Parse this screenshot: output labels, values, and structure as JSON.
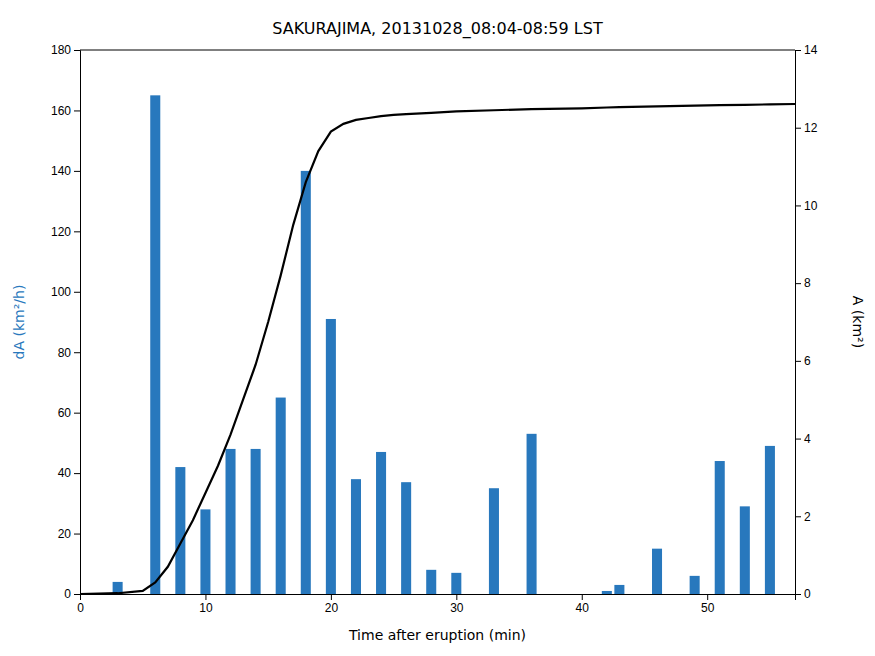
{
  "chart_data": {
    "type": "bar",
    "title": "SAKURAJIMA, 20131028_08:04-08:59 LST",
    "xlabel": "Time after eruption (min)",
    "ylabel": "dA (km²/h)",
    "y2label": "A (km²)",
    "series": [
      {
        "type": "bar",
        "color": "#2878BD",
        "x": [
          3,
          6,
          8,
          10,
          12,
          14,
          16,
          18,
          20,
          22,
          24,
          26,
          28,
          30,
          33,
          36,
          42,
          43,
          46,
          49,
          51,
          53,
          55
        ],
        "values": [
          4,
          165,
          42,
          28,
          48,
          48,
          65,
          140,
          91,
          38,
          47,
          37,
          8,
          7,
          35,
          53,
          1,
          3,
          15,
          6,
          44,
          29,
          49
        ]
      },
      {
        "type": "line",
        "color": "#000000",
        "axis": "y2",
        "x": [
          0,
          3,
          5,
          6,
          7,
          8,
          9,
          10,
          11,
          12,
          13,
          14,
          15,
          16,
          17,
          18,
          19,
          20,
          21,
          22,
          23,
          24,
          25,
          26,
          28,
          30,
          33,
          36,
          40,
          42,
          43,
          46,
          49,
          51,
          53,
          55,
          57
        ],
        "values": [
          0,
          0.02,
          0.08,
          0.3,
          0.7,
          1.3,
          1.9,
          2.6,
          3.3,
          4.1,
          5.0,
          5.9,
          7.0,
          8.2,
          9.5,
          10.6,
          11.4,
          11.9,
          12.1,
          12.2,
          12.25,
          12.3,
          12.33,
          12.35,
          12.38,
          12.42,
          12.45,
          12.48,
          12.5,
          12.52,
          12.53,
          12.55,
          12.57,
          12.58,
          12.59,
          12.6,
          12.61
        ]
      }
    ],
    "xlim": [
      0,
      57
    ],
    "xticks": [
      0,
      10,
      20,
      30,
      40,
      50
    ],
    "ylim": [
      0,
      180
    ],
    "yticks": [
      0,
      20,
      40,
      60,
      80,
      100,
      120,
      140,
      160,
      180
    ],
    "y2lim": [
      0,
      14
    ],
    "y2ticks": [
      0,
      2,
      4,
      6,
      8,
      10,
      12,
      14
    ],
    "grid": false
  }
}
